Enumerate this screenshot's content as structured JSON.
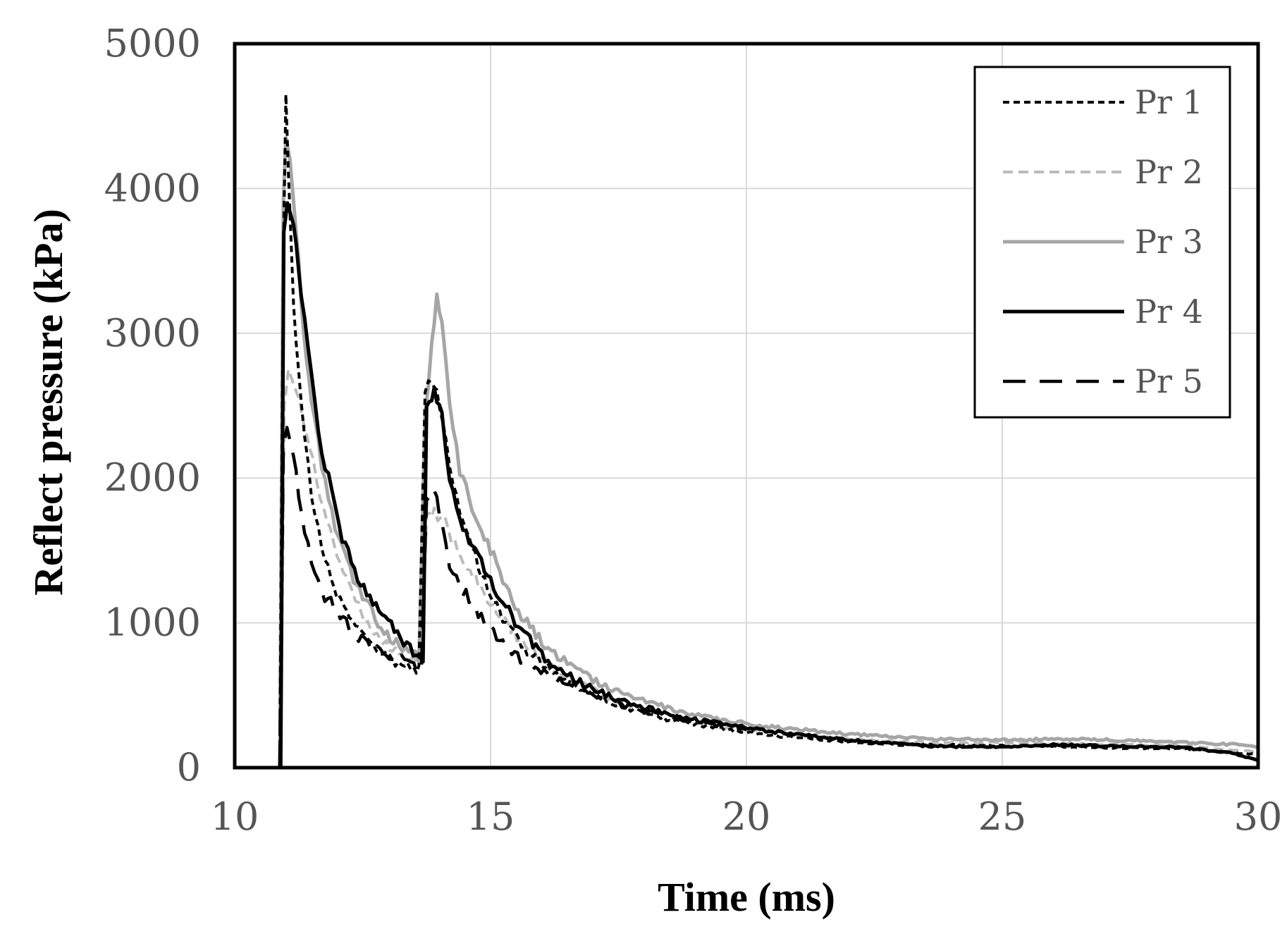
{
  "chart_data": {
    "type": "line",
    "title": "",
    "xlabel": "Time (ms)",
    "ylabel": "Reflect pressure (kPa)",
    "xlim": [
      10,
      30
    ],
    "ylim": [
      0,
      5000
    ],
    "xticks": [
      10,
      15,
      20,
      25,
      30
    ],
    "yticks": [
      0,
      1000,
      2000,
      3000,
      4000,
      5000
    ],
    "xtick_labels": [
      "10",
      "15",
      "20",
      "25",
      "30"
    ],
    "ytick_labels": [
      "0",
      "1000",
      "2000",
      "3000",
      "4000",
      "5000"
    ],
    "grid": true,
    "legend_position": "top-right",
    "series": [
      {
        "name": "Pr 1",
        "color": "#000000",
        "style": "short-dash",
        "points": [
          [
            10.88,
            0
          ],
          [
            10.95,
            3500
          ],
          [
            11.0,
            4650
          ],
          [
            11.05,
            4100
          ],
          [
            11.15,
            3200
          ],
          [
            11.3,
            2500
          ],
          [
            11.5,
            1900
          ],
          [
            11.7,
            1500
          ],
          [
            12.0,
            1200
          ],
          [
            12.3,
            1000
          ],
          [
            12.6,
            880
          ],
          [
            12.9,
            780
          ],
          [
            13.2,
            720
          ],
          [
            13.5,
            680
          ],
          [
            13.6,
            680
          ],
          [
            13.72,
            2600
          ],
          [
            13.85,
            2700
          ],
          [
            14.0,
            2500
          ],
          [
            14.2,
            2100
          ],
          [
            14.4,
            1750
          ],
          [
            14.7,
            1450
          ],
          [
            15.0,
            1200
          ],
          [
            15.3,
            1000
          ],
          [
            15.6,
            850
          ],
          [
            16.0,
            720
          ],
          [
            16.4,
            620
          ],
          [
            16.8,
            540
          ],
          [
            17.5,
            430
          ],
          [
            18.5,
            330
          ],
          [
            20.0,
            240
          ],
          [
            21.5,
            190
          ],
          [
            23.0,
            160
          ],
          [
            25.0,
            150
          ],
          [
            27.0,
            140
          ],
          [
            28.5,
            130
          ],
          [
            30.0,
            90
          ]
        ]
      },
      {
        "name": "Pr 2",
        "color": "#bbbbbb",
        "style": "dash",
        "points": [
          [
            10.9,
            0
          ],
          [
            10.97,
            2500
          ],
          [
            11.05,
            2750
          ],
          [
            11.2,
            2600
          ],
          [
            11.4,
            2300
          ],
          [
            11.6,
            2000
          ],
          [
            11.8,
            1700
          ],
          [
            12.0,
            1450
          ],
          [
            12.3,
            1200
          ],
          [
            12.6,
            1000
          ],
          [
            12.9,
            870
          ],
          [
            13.2,
            780
          ],
          [
            13.5,
            730
          ],
          [
            13.65,
            720
          ],
          [
            13.75,
            1700
          ],
          [
            13.9,
            1750
          ],
          [
            14.1,
            1700
          ],
          [
            14.3,
            1550
          ],
          [
            14.6,
            1350
          ],
          [
            15.0,
            1150
          ],
          [
            15.4,
            950
          ],
          [
            15.8,
            800
          ],
          [
            16.2,
            690
          ],
          [
            16.8,
            570
          ],
          [
            17.5,
            450
          ],
          [
            18.5,
            350
          ],
          [
            20.0,
            260
          ],
          [
            21.5,
            210
          ],
          [
            23.0,
            180
          ],
          [
            25.0,
            170
          ],
          [
            27.0,
            160
          ],
          [
            28.5,
            150
          ],
          [
            30.0,
            110
          ]
        ]
      },
      {
        "name": "Pr 3",
        "color": "#a6a6a6",
        "style": "solid",
        "points": [
          [
            10.88,
            0
          ],
          [
            10.95,
            3900
          ],
          [
            11.0,
            4350
          ],
          [
            11.08,
            4200
          ],
          [
            11.2,
            3700
          ],
          [
            11.35,
            3000
          ],
          [
            11.5,
            2500
          ],
          [
            11.7,
            2100
          ],
          [
            11.9,
            1750
          ],
          [
            12.2,
            1400
          ],
          [
            12.5,
            1180
          ],
          [
            12.8,
            1000
          ],
          [
            13.1,
            880
          ],
          [
            13.4,
            800
          ],
          [
            13.6,
            760
          ],
          [
            13.72,
            2400
          ],
          [
            13.85,
            2900
          ],
          [
            13.95,
            3300
          ],
          [
            14.05,
            3050
          ],
          [
            14.2,
            2500
          ],
          [
            14.4,
            2050
          ],
          [
            14.7,
            1750
          ],
          [
            15.0,
            1500
          ],
          [
            15.3,
            1250
          ],
          [
            15.6,
            1050
          ],
          [
            16.0,
            870
          ],
          [
            16.5,
            720
          ],
          [
            17.0,
            600
          ],
          [
            17.8,
            480
          ],
          [
            19.0,
            360
          ],
          [
            20.5,
            280
          ],
          [
            22.0,
            230
          ],
          [
            23.5,
            200
          ],
          [
            25.0,
            190
          ],
          [
            26.5,
            200
          ],
          [
            28.0,
            180
          ],
          [
            29.5,
            160
          ],
          [
            30.0,
            140
          ]
        ]
      },
      {
        "name": "Pr 4",
        "color": "#000000",
        "style": "solid",
        "points": [
          [
            10.9,
            0
          ],
          [
            10.96,
            3700
          ],
          [
            11.03,
            3900
          ],
          [
            11.15,
            3750
          ],
          [
            11.3,
            3300
          ],
          [
            11.5,
            2700
          ],
          [
            11.7,
            2200
          ],
          [
            11.9,
            1900
          ],
          [
            12.1,
            1600
          ],
          [
            12.4,
            1300
          ],
          [
            12.7,
            1150
          ],
          [
            13.0,
            1000
          ],
          [
            13.3,
            880
          ],
          [
            13.55,
            780
          ],
          [
            13.68,
            760
          ],
          [
            13.75,
            2500
          ],
          [
            13.9,
            2600
          ],
          [
            14.05,
            2450
          ],
          [
            14.2,
            2000
          ],
          [
            14.4,
            1700
          ],
          [
            14.7,
            1500
          ],
          [
            15.0,
            1300
          ],
          [
            15.3,
            1100
          ],
          [
            15.6,
            950
          ],
          [
            16.0,
            780
          ],
          [
            16.5,
            650
          ],
          [
            17.0,
            540
          ],
          [
            17.8,
            430
          ],
          [
            19.0,
            330
          ],
          [
            20.5,
            250
          ],
          [
            22.0,
            190
          ],
          [
            23.5,
            150
          ],
          [
            25.0,
            140
          ],
          [
            26.0,
            160
          ],
          [
            27.0,
            150
          ],
          [
            28.5,
            140
          ],
          [
            29.5,
            100
          ],
          [
            30.0,
            50
          ]
        ]
      },
      {
        "name": "Pr 5",
        "color": "#000000",
        "style": "long-dash",
        "points": [
          [
            10.88,
            0
          ],
          [
            10.95,
            2200
          ],
          [
            11.02,
            2350
          ],
          [
            11.15,
            2150
          ],
          [
            11.3,
            1750
          ],
          [
            11.5,
            1400
          ],
          [
            11.7,
            1200
          ],
          [
            12.0,
            1100
          ],
          [
            12.3,
            950
          ],
          [
            12.6,
            850
          ],
          [
            12.9,
            790
          ],
          [
            13.2,
            760
          ],
          [
            13.5,
            700
          ],
          [
            13.65,
            680
          ],
          [
            13.75,
            1850
          ],
          [
            13.9,
            1950
          ],
          [
            14.05,
            1700
          ],
          [
            14.2,
            1400
          ],
          [
            14.4,
            1250
          ],
          [
            14.7,
            1100
          ],
          [
            15.0,
            950
          ],
          [
            15.3,
            820
          ],
          [
            15.7,
            720
          ],
          [
            16.1,
            640
          ],
          [
            16.6,
            560
          ],
          [
            17.2,
            470
          ],
          [
            18.0,
            390
          ],
          [
            19.0,
            320
          ],
          [
            20.0,
            260
          ]
        ]
      }
    ]
  }
}
